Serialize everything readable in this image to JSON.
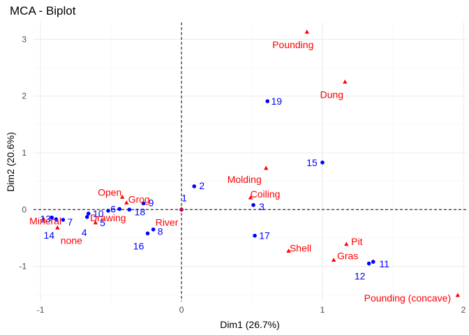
{
  "chart_data": {
    "type": "scatter",
    "title": "MCA - Biplot",
    "xlabel": "Dim1 (26.7%)",
    "ylabel": "Dim2 (20.6%)",
    "xlim": [
      -1.05,
      2.02
    ],
    "ylim": [
      -1.62,
      3.3
    ],
    "xticks": [
      -1,
      0,
      1,
      2
    ],
    "yticks": [
      -1,
      0,
      1,
      2,
      3
    ],
    "grid": true,
    "legend": "none",
    "series": [
      {
        "role": "individuals",
        "color": "#0000ff",
        "marker": "circle",
        "points": [
          {
            "label": "1",
            "x": 0.0,
            "y": 0.0
          },
          {
            "label": "2",
            "x": 0.09,
            "y": 0.41
          },
          {
            "label": "3",
            "x": 0.51,
            "y": 0.08
          },
          {
            "label": "4",
            "x": -0.67,
            "y": -0.13
          },
          {
            "label": "5",
            "x": -0.52,
            "y": -0.02
          },
          {
            "label": "6",
            "x": -0.44,
            "y": 0.01
          },
          {
            "label": "7",
            "x": -0.84,
            "y": -0.18
          },
          {
            "label": "8",
            "x": -0.2,
            "y": -0.35
          },
          {
            "label": "9",
            "x": -0.27,
            "y": 0.11
          },
          {
            "label": "10",
            "x": -0.66,
            "y": -0.07
          },
          {
            "label": "11",
            "x": 1.36,
            "y": -0.92
          },
          {
            "label": "12",
            "x": 1.33,
            "y": -0.95
          },
          {
            "label": "13",
            "x": -0.92,
            "y": -0.14
          },
          {
            "label": "14",
            "x": -0.89,
            "y": -0.17
          },
          {
            "label": "15",
            "x": 1.0,
            "y": 0.83
          },
          {
            "label": "16",
            "x": -0.24,
            "y": -0.42
          },
          {
            "label": "17",
            "x": 0.52,
            "y": -0.46
          },
          {
            "label": "18",
            "x": -0.37,
            "y": 0.0
          },
          {
            "label": "19",
            "x": 0.61,
            "y": 1.91
          }
        ]
      },
      {
        "role": "categories",
        "color": "#ff0000",
        "marker": "triangle",
        "points": [
          {
            "label": "Pounding",
            "x": 0.89,
            "y": 3.13
          },
          {
            "label": "Dung",
            "x": 1.16,
            "y": 2.25
          },
          {
            "label": "Molding",
            "x": 0.6,
            "y": 0.73
          },
          {
            "label": "Coiling",
            "x": 0.49,
            "y": 0.21
          },
          {
            "label": "Open",
            "x": -0.42,
            "y": 0.22
          },
          {
            "label": "Grog",
            "x": -0.39,
            "y": 0.12
          },
          {
            "label": "Mineral",
            "x": -0.98,
            "y": -0.16
          },
          {
            "label": "none",
            "x": -0.88,
            "y": -0.32
          },
          {
            "label": "Drawing",
            "x": -0.61,
            "y": -0.23
          },
          {
            "label": "River",
            "x": 0.0,
            "y": 0.01
          },
          {
            "label": "Shell",
            "x": 0.76,
            "y": -0.73
          },
          {
            "label": "Pit",
            "x": 1.17,
            "y": -0.61
          },
          {
            "label": "Gras",
            "x": 1.08,
            "y": -0.89
          },
          {
            "label": "Pounding (concave)",
            "x": 1.96,
            "y": -1.51
          }
        ]
      }
    ]
  }
}
